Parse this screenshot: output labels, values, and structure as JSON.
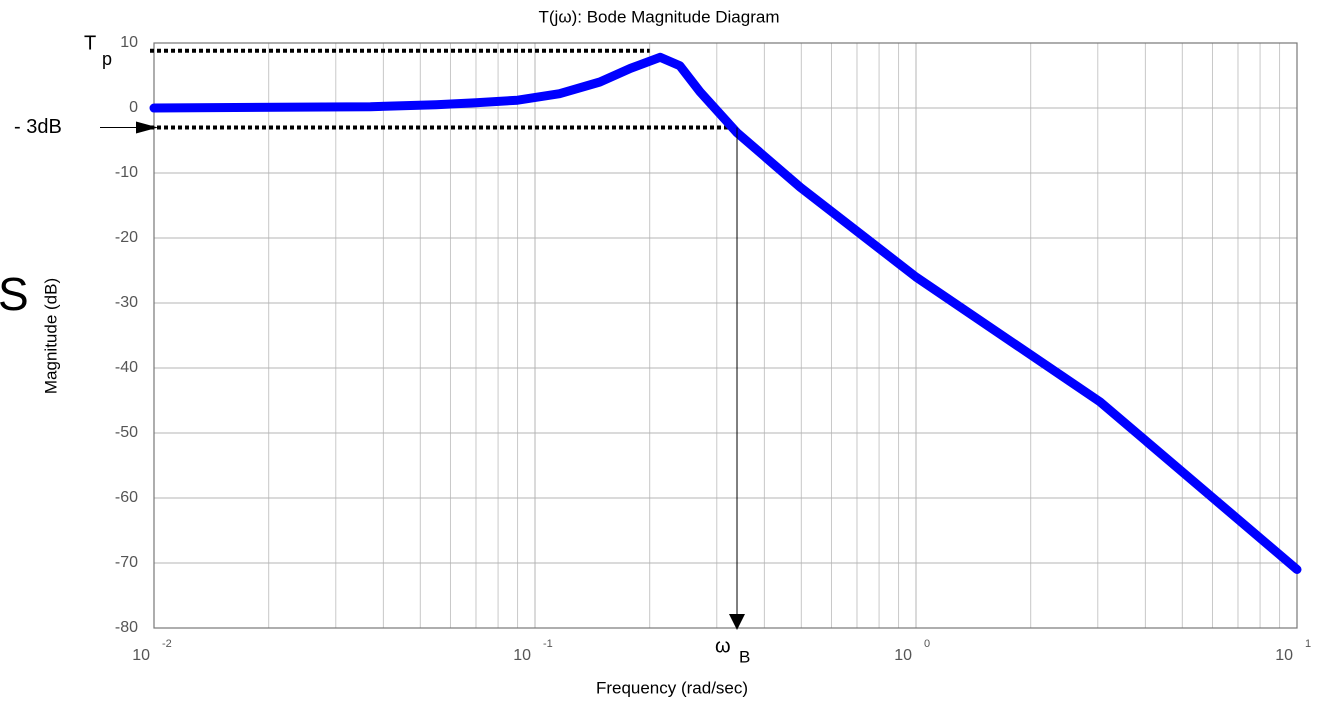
{
  "chart_data": {
    "type": "line",
    "title": "T(jω): Bode Magnitude Diagram",
    "x_label": "Frequency (rad/sec)",
    "y_label": "Magnitude (dB)",
    "xscale": "log",
    "xlim": [
      0.01,
      10
    ],
    "ylim": [
      -80,
      10
    ],
    "xticks": [
      {
        "value": 0.01,
        "label": "10",
        "exponent": "-2"
      },
      {
        "value": 0.1,
        "label": "10",
        "exponent": "-1"
      },
      {
        "value": 1,
        "label": "10",
        "exponent": "0"
      },
      {
        "value": 10,
        "label": "10",
        "exponent": "1"
      }
    ],
    "xminorticks": [
      0.02,
      0.03,
      0.04,
      0.05,
      0.06,
      0.07,
      0.08,
      0.09,
      0.2,
      0.3,
      0.4,
      0.5,
      0.6,
      0.7,
      0.8,
      0.9,
      2,
      3,
      4,
      5,
      6,
      7,
      8,
      9
    ],
    "yticks": [
      10,
      0,
      -10,
      -20,
      -30,
      -40,
      -50,
      -60,
      -70,
      -80
    ],
    "grid": true,
    "x": [
      0.01,
      0.037,
      0.055,
      0.07,
      0.09,
      0.116,
      0.148,
      0.178,
      0.213,
      0.24,
      0.271,
      0.339,
      0.497,
      1,
      3.04,
      10
    ],
    "values": [
      0,
      0.2,
      0.5,
      0.8,
      1.2,
      2.2,
      4,
      6.1,
      7.8,
      6.5,
      2.5,
      -3.8,
      -12.2,
      -26,
      -45.2,
      -71
    ],
    "color": "#0000ff",
    "reference_lines": [
      {
        "label": "T",
        "subscript": "p",
        "value": 8.8,
        "x_end": 0.2
      },
      {
        "label": "- 3dB",
        "value": -3,
        "x_end": 0.339
      }
    ],
    "marker": {
      "label": "ω",
      "subscript": "B",
      "x": 0.339
    },
    "fragment": "S"
  }
}
